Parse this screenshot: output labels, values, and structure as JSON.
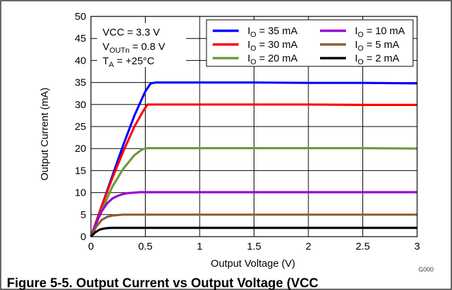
{
  "chart_data": {
    "type": "line",
    "title": "",
    "xlabel": "Output Voltage (V)",
    "ylabel": "Output Current (mA)",
    "xlim": [
      0,
      3
    ],
    "ylim": [
      0,
      50
    ],
    "grid": true,
    "xticks": [
      "0",
      "0.5",
      "1",
      "1.5",
      "2",
      "2.5",
      "3"
    ],
    "yticks": [
      "0",
      "5",
      "10",
      "15",
      "20",
      "25",
      "30",
      "35",
      "40",
      "45",
      "50"
    ],
    "conditions": [
      {
        "main": "VCC = 3.3 V",
        "sub": "",
        "tail": ""
      },
      {
        "main": "V",
        "sub": "OUTn",
        "tail": " = 0.8 V"
      },
      {
        "main": "T",
        "sub": "A",
        "tail": " = +25°C"
      }
    ],
    "legend_position": "top-right",
    "series": [
      {
        "name": "IO = 35 mA",
        "label_main": "I",
        "label_sub": "O",
        "label_tail": " = 35 mA",
        "color": "#0000ff",
        "x": [
          0,
          0.1,
          0.2,
          0.3,
          0.4,
          0.5,
          0.55,
          0.6,
          1,
          1.5,
          2,
          2.5,
          3
        ],
        "y": [
          0,
          7,
          14,
          21,
          27.5,
          33,
          34.8,
          35,
          35,
          35,
          34.9,
          34.9,
          34.8
        ]
      },
      {
        "name": "IO = 30 mA",
        "label_main": "I",
        "label_sub": "O",
        "label_tail": " = 30 mA",
        "color": "#ff0000",
        "x": [
          0,
          0.1,
          0.2,
          0.3,
          0.4,
          0.48,
          0.52,
          0.6,
          1,
          1.5,
          2,
          2.5,
          3
        ],
        "y": [
          0,
          7,
          13.5,
          19.5,
          25,
          28.5,
          30,
          30,
          30,
          30,
          30,
          29.9,
          29.9
        ]
      },
      {
        "name": "IO = 20 mA",
        "label_main": "I",
        "label_sub": "O",
        "label_tail": " = 20 mA",
        "color": "#6a9a3a",
        "x": [
          0,
          0.1,
          0.2,
          0.3,
          0.4,
          0.47,
          0.52,
          1,
          1.5,
          2,
          2.5,
          3
        ],
        "y": [
          0,
          6,
          11.5,
          15.5,
          18.5,
          19.8,
          20.1,
          20.1,
          20.1,
          20.1,
          20.1,
          20
        ]
      },
      {
        "name": "IO = 10 mA",
        "label_main": "I",
        "label_sub": "O",
        "label_tail": " = 10 mA",
        "color": "#9b00d3",
        "x": [
          0,
          0.05,
          0.1,
          0.15,
          0.2,
          0.25,
          0.3,
          0.35,
          0.4,
          0.45,
          1,
          1.5,
          2,
          2.5,
          3
        ],
        "y": [
          0,
          3.2,
          5.8,
          7.6,
          8.7,
          9.3,
          9.7,
          9.9,
          10,
          10.1,
          10.1,
          10.1,
          10.1,
          10.1,
          10.1
        ]
      },
      {
        "name": "IO = 5 mA",
        "label_main": "I",
        "label_sub": "O",
        "label_tail": " = 5 mA",
        "color": "#8b5e34",
        "x": [
          0,
          0.05,
          0.1,
          0.15,
          0.2,
          0.25,
          0.3,
          0.4,
          1,
          1.5,
          2,
          2.5,
          3
        ],
        "y": [
          0,
          2.3,
          3.8,
          4.5,
          4.8,
          4.9,
          5,
          5,
          5,
          5,
          5,
          5,
          5
        ]
      },
      {
        "name": "IO = 2 mA",
        "label_main": "I",
        "label_sub": "O",
        "label_tail": " = 2 mA",
        "color": "#000000",
        "x": [
          0,
          0.04,
          0.08,
          0.12,
          0.16,
          0.2,
          0.3,
          1,
          1.5,
          2,
          2.5,
          3
        ],
        "y": [
          0,
          1.0,
          1.6,
          1.85,
          1.95,
          2,
          2,
          2,
          2,
          2,
          2,
          2
        ]
      }
    ],
    "figure_id": "G000",
    "caption": "Figure 5-5. Output Current vs Output Voltage (VCC"
  }
}
